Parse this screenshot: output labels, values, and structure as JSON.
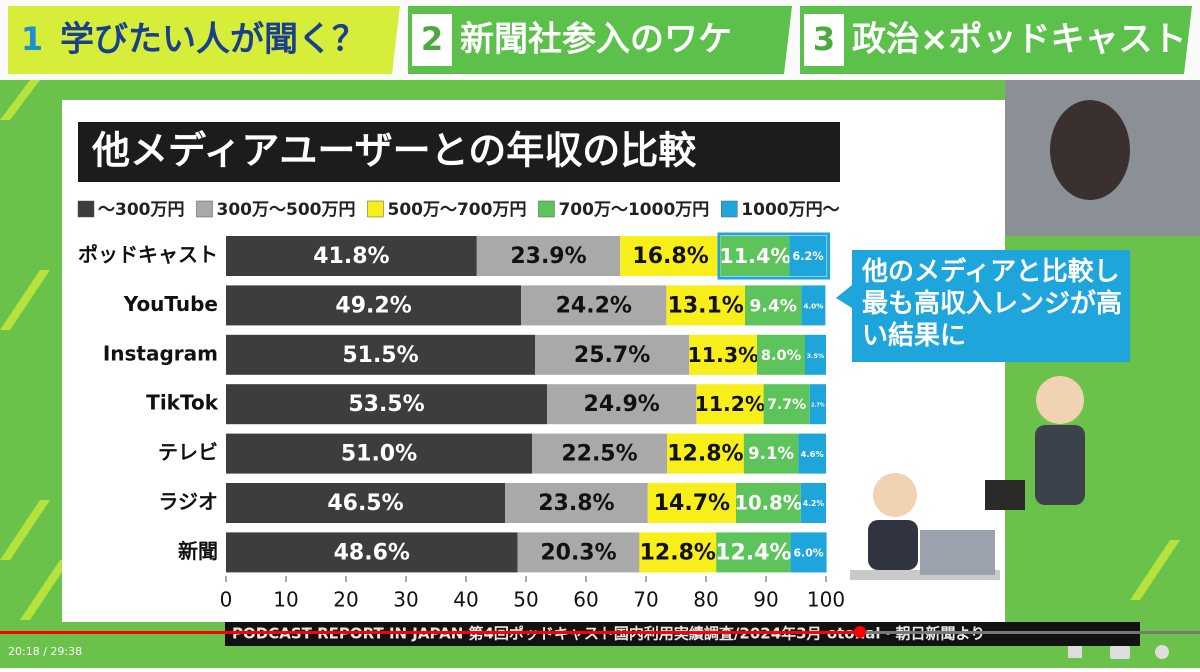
{
  "tabs": [
    {
      "number": "1",
      "label": "学びたい人が聞く？"
    },
    {
      "number": "2",
      "label": "新聞社参入のワケ"
    },
    {
      "number": "3",
      "label": "政治×ポッドキャスト"
    }
  ],
  "chart_data": {
    "type": "stacked-bar",
    "orientation": "horizontal",
    "title": "他メディアユーザーとの年収の比較",
    "categories": [
      "ポッドキャスト",
      "YouTube",
      "Instagram",
      "TikTok",
      "テレビ",
      "ラジオ",
      "新聞"
    ],
    "series": [
      {
        "name": "～300万円",
        "color": "#3d3d3d",
        "text_color": "#ffffff",
        "values": [
          41.8,
          49.2,
          51.5,
          53.5,
          51.0,
          46.5,
          48.6
        ],
        "value_labels": [
          "41.8%",
          "49.2%",
          "51.5%",
          "53.5%",
          "51.0%",
          "46.5%",
          "48.6%"
        ]
      },
      {
        "name": "300万～500万円",
        "color": "#a9a9a9",
        "text_color": "#111111",
        "values": [
          23.9,
          24.2,
          25.7,
          24.9,
          22.5,
          23.8,
          20.3
        ],
        "value_labels": [
          "23.9%",
          "24.2%",
          "25.7%",
          "24.9%",
          "22.5%",
          "23.8%",
          "20.3%"
        ]
      },
      {
        "name": "500万～700万円",
        "color": "#f7ee1a",
        "text_color": "#111111",
        "values": [
          16.8,
          13.1,
          11.3,
          11.2,
          12.8,
          14.7,
          12.8
        ],
        "value_labels": [
          "16.8%",
          "13.1%",
          "11.3%",
          "11.2%",
          "12.8%",
          "14.7%",
          "12.8%"
        ]
      },
      {
        "name": "700万～1000万円",
        "color": "#5cc45a",
        "text_color": "#ffffff",
        "values": [
          11.4,
          9.4,
          8.0,
          7.7,
          9.1,
          10.8,
          12.4
        ],
        "value_labels": [
          "11.4%",
          "9.4%",
          "8.0%",
          "7.7%",
          "9.1%",
          "10.8%",
          "12.4%"
        ]
      },
      {
        "name": "1000万円～",
        "color": "#1ea5dc",
        "text_color": "#ffffff",
        "values": [
          6.2,
          4.0,
          3.5,
          2.7,
          4.6,
          4.2,
          6.0
        ],
        "value_labels": [
          "6.2%",
          "4.0%",
          "3.5%",
          "2.7%",
          "4.6%",
          "4.2%",
          "6.0%"
        ]
      }
    ],
    "xlim": [
      0,
      100
    ],
    "xticks": [
      0,
      10,
      20,
      30,
      40,
      50,
      60,
      70,
      80,
      90,
      100
    ],
    "annotation": "他のメディアと比較し最も高収入レンジが高い結果に"
  },
  "source": "PODCAST REPORT IN JAPAN 第4回ポッドキャスト国内利用実績調査/2024年3月 otonal・朝日新聞より",
  "player": {
    "time": "20:18 / 29:38"
  }
}
